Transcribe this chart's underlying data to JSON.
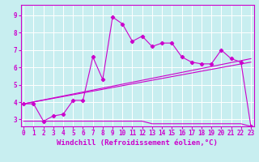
{
  "background_color": "#c8eef0",
  "line_color": "#cc00cc",
  "grid_color": "#ffffff",
  "xlabel": "Windchill (Refroidissement éolien,°C)",
  "xlabel_fontsize": 6.5,
  "yticks": [
    3,
    4,
    5,
    6,
    7,
    8,
    9
  ],
  "xticks": [
    0,
    1,
    2,
    3,
    4,
    5,
    6,
    7,
    8,
    9,
    10,
    11,
    12,
    13,
    14,
    15,
    16,
    17,
    18,
    19,
    20,
    21,
    22,
    23
  ],
  "xlim": [
    -0.3,
    23.3
  ],
  "ylim": [
    2.6,
    9.6
  ],
  "series1_x": [
    0,
    1,
    2,
    3,
    4,
    5,
    6,
    7,
    8,
    9,
    10,
    11,
    12,
    13,
    14,
    15,
    16,
    17,
    18,
    19,
    20,
    21,
    22,
    23
  ],
  "series1_y": [
    3.9,
    3.9,
    2.9,
    3.2,
    3.3,
    4.1,
    4.1,
    6.6,
    5.3,
    8.9,
    8.5,
    7.5,
    7.8,
    7.2,
    7.4,
    7.4,
    6.6,
    6.3,
    6.2,
    6.2,
    7.0,
    6.5,
    6.3,
    2.6
  ],
  "series2_x": [
    0,
    23
  ],
  "series2_y": [
    3.9,
    6.5
  ],
  "series3_x": [
    0,
    23
  ],
  "series3_y": [
    3.9,
    6.3
  ],
  "series4_x": [
    0,
    1,
    2,
    3,
    4,
    5,
    6,
    7,
    8,
    9,
    10,
    11,
    12,
    13,
    14,
    15,
    16,
    17,
    18,
    19,
    20,
    21,
    22,
    23
  ],
  "series4_y": [
    2.9,
    2.9,
    2.9,
    2.9,
    2.9,
    2.9,
    2.9,
    2.9,
    2.9,
    2.9,
    2.9,
    2.9,
    2.9,
    2.75,
    2.75,
    2.75,
    2.75,
    2.75,
    2.75,
    2.75,
    2.75,
    2.75,
    2.75,
    2.6
  ]
}
